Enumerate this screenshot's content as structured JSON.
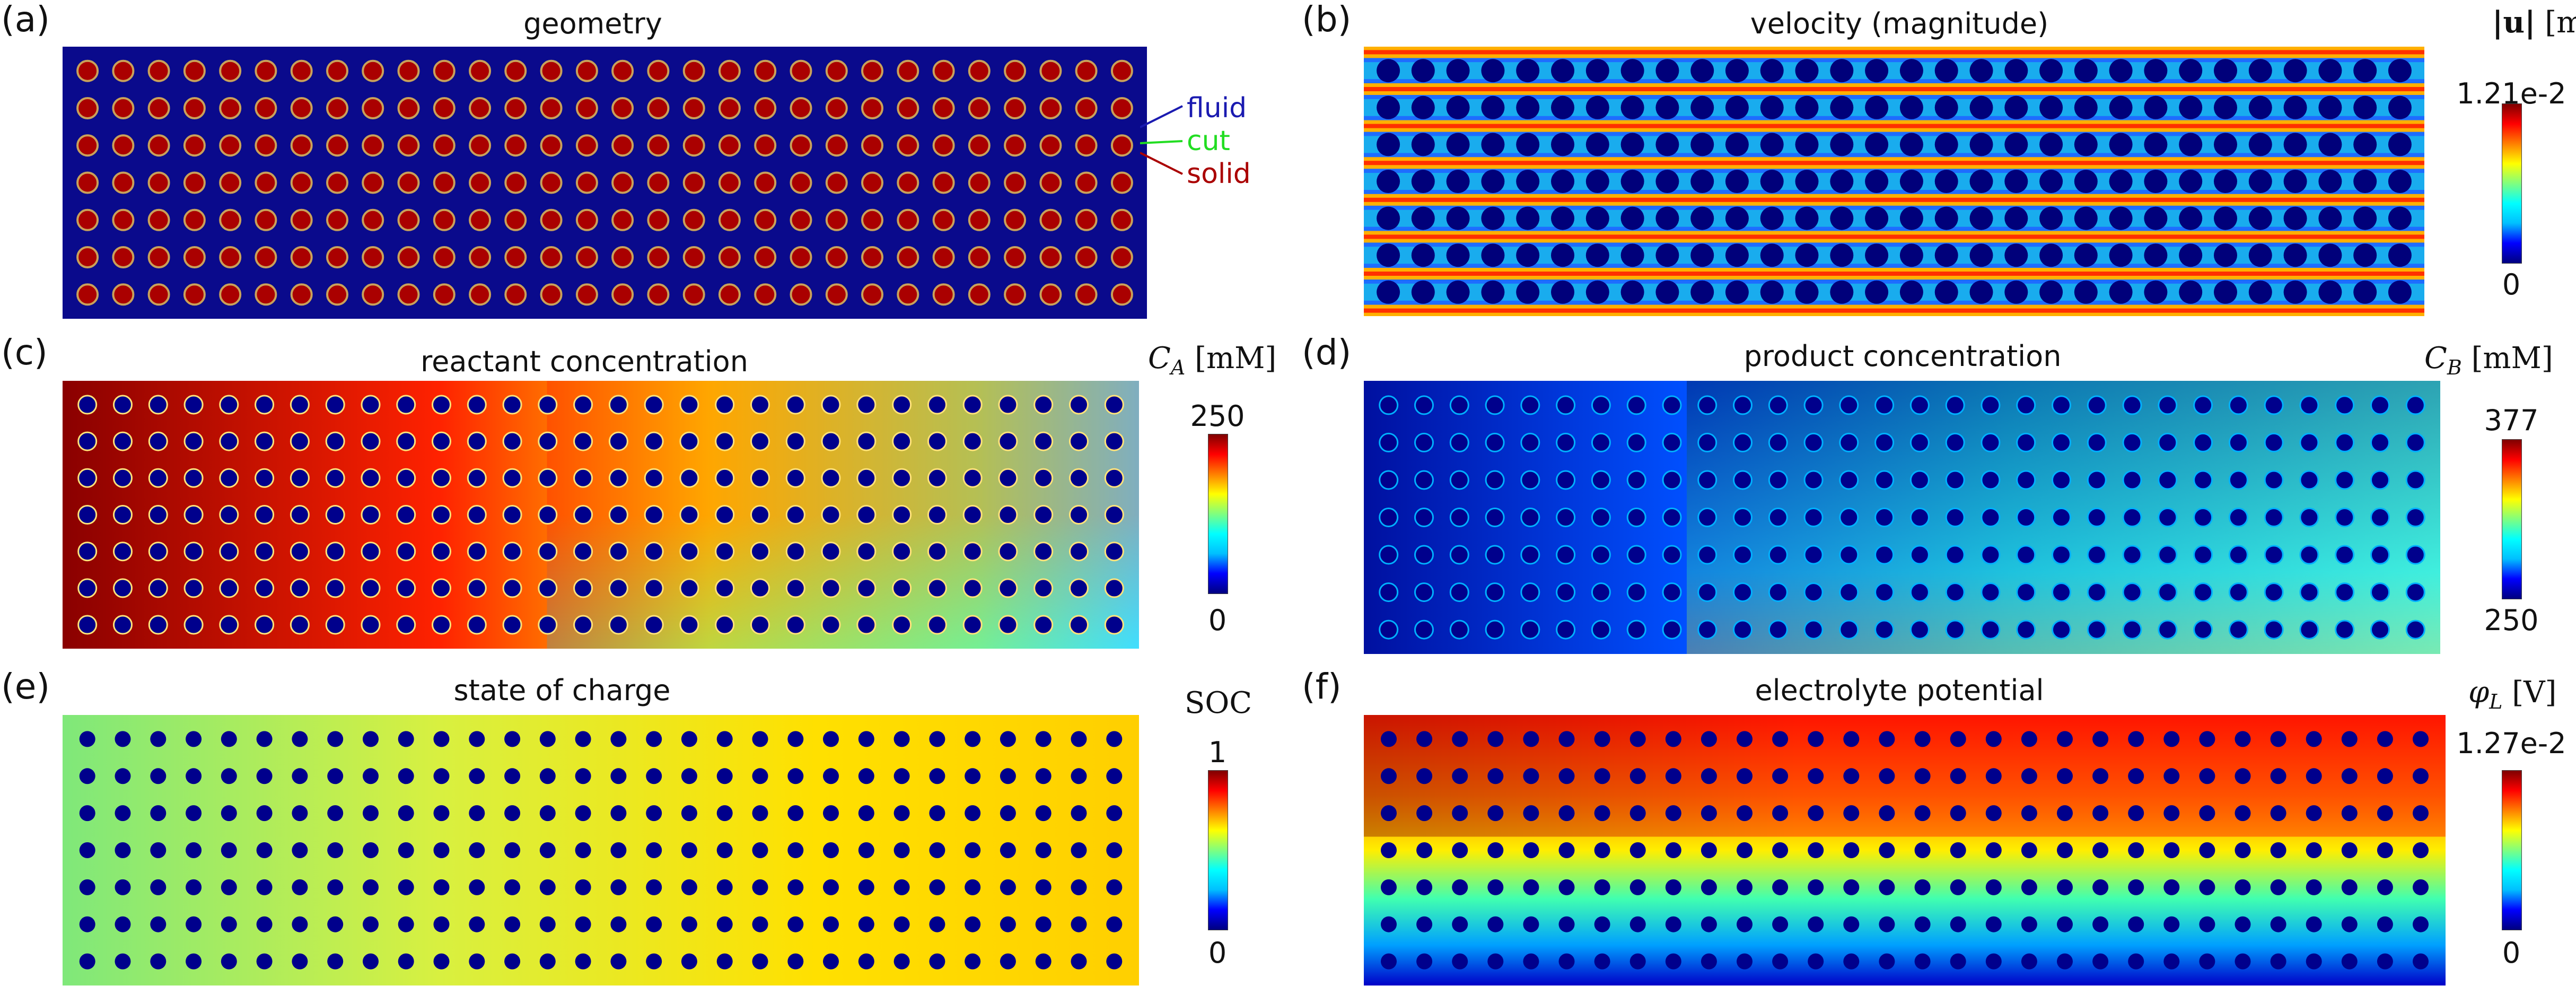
{
  "panels": {
    "a": {
      "tag": "(a)",
      "title": "geometry"
    },
    "b": {
      "tag": "(b)",
      "title": "velocity (magnitude)",
      "unit": "[m/s]",
      "max": "1.21e-2",
      "min": "0"
    },
    "c": {
      "tag": "(c)",
      "title": "reactant concentration",
      "unit": "[mM]",
      "max": "250",
      "min": "0"
    },
    "d": {
      "tag": "(d)",
      "title": "product concentration",
      "unit": "[mM]",
      "max": "377",
      "min": "250"
    },
    "e": {
      "tag": "(e)",
      "title": "state of charge",
      "unit": "SOC",
      "max": "1",
      "min": "0"
    },
    "f": {
      "tag": "(f)",
      "title": "electrolyte potential",
      "unit": "[V]",
      "max": "1.27e-2",
      "min": "0"
    }
  },
  "legend": {
    "fluid": "fluid",
    "cut": "cut",
    "solid": "solid"
  },
  "colors": {
    "fluid": "#0a0a8c",
    "cut": "#22dd22",
    "solid": "#aa0000",
    "legend_fluid": "#1a1ab0"
  }
}
